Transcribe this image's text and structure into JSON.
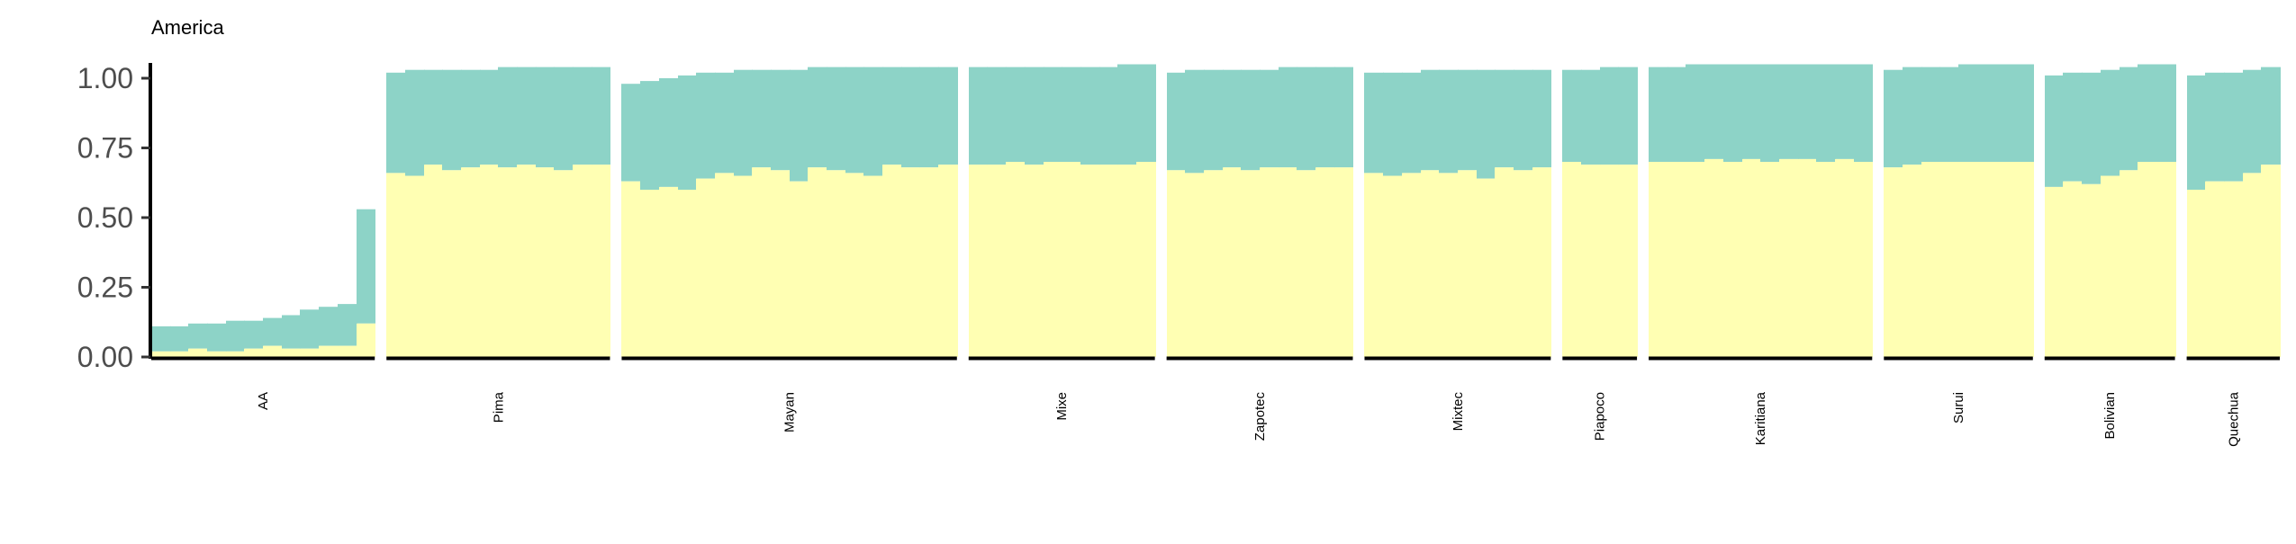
{
  "chart_data": {
    "type": "bar",
    "title": "America",
    "xlabel": "",
    "ylabel": "",
    "ylim": [
      0,
      1.05
    ],
    "yticks": [
      0.0,
      0.25,
      0.5,
      0.75,
      1.0
    ],
    "ytick_labels": [
      "0.00",
      "0.25",
      "0.50",
      "0.75",
      "1.00"
    ],
    "grid": false,
    "legend": "none",
    "colors": {
      "lower": "#ffffb3",
      "upper": "#8dd3c7"
    },
    "groups": [
      {
        "name": "AA",
        "lower": [
          0.02,
          0.02,
          0.03,
          0.02,
          0.02,
          0.03,
          0.04,
          0.03,
          0.03,
          0.04,
          0.04,
          0.12
        ],
        "total": [
          0.11,
          0.11,
          0.12,
          0.12,
          0.13,
          0.13,
          0.14,
          0.15,
          0.17,
          0.18,
          0.19,
          0.53
        ]
      },
      {
        "name": "Pima",
        "lower": [
          0.66,
          0.65,
          0.69,
          0.67,
          0.68,
          0.69,
          0.68,
          0.69,
          0.68,
          0.67,
          0.69,
          0.69
        ],
        "total": [
          1.02,
          1.03,
          1.03,
          1.03,
          1.03,
          1.03,
          1.04,
          1.04,
          1.04,
          1.04,
          1.04,
          1.04
        ]
      },
      {
        "name": "Mayan",
        "lower": [
          0.63,
          0.6,
          0.61,
          0.6,
          0.64,
          0.66,
          0.65,
          0.68,
          0.67,
          0.63,
          0.68,
          0.67,
          0.66,
          0.65,
          0.69,
          0.68,
          0.68,
          0.69
        ],
        "total": [
          0.98,
          0.99,
          1.0,
          1.01,
          1.02,
          1.02,
          1.03,
          1.03,
          1.03,
          1.03,
          1.04,
          1.04,
          1.04,
          1.04,
          1.04,
          1.04,
          1.04,
          1.04
        ]
      },
      {
        "name": "Mixe",
        "lower": [
          0.69,
          0.69,
          0.7,
          0.69,
          0.7,
          0.7,
          0.69,
          0.69,
          0.69,
          0.7
        ],
        "total": [
          1.04,
          1.04,
          1.04,
          1.04,
          1.04,
          1.04,
          1.04,
          1.04,
          1.05,
          1.05
        ]
      },
      {
        "name": "Zapotec",
        "lower": [
          0.67,
          0.66,
          0.67,
          0.68,
          0.67,
          0.68,
          0.68,
          0.67,
          0.68,
          0.68
        ],
        "total": [
          1.02,
          1.03,
          1.03,
          1.03,
          1.03,
          1.03,
          1.04,
          1.04,
          1.04,
          1.04
        ]
      },
      {
        "name": "Mixtec",
        "lower": [
          0.66,
          0.65,
          0.66,
          0.67,
          0.66,
          0.67,
          0.64,
          0.68,
          0.67,
          0.68
        ],
        "total": [
          1.02,
          1.02,
          1.02,
          1.03,
          1.03,
          1.03,
          1.03,
          1.03,
          1.03,
          1.03
        ]
      },
      {
        "name": "Piapoco",
        "lower": [
          0.7,
          0.69,
          0.69,
          0.69
        ],
        "total": [
          1.03,
          1.03,
          1.04,
          1.04
        ]
      },
      {
        "name": "Karitiana",
        "lower": [
          0.7,
          0.7,
          0.7,
          0.71,
          0.7,
          0.71,
          0.7,
          0.71,
          0.71,
          0.7,
          0.71,
          0.7
        ],
        "total": [
          1.04,
          1.04,
          1.05,
          1.05,
          1.05,
          1.05,
          1.05,
          1.05,
          1.05,
          1.05,
          1.05,
          1.05
        ]
      },
      {
        "name": "Surui",
        "lower": [
          0.68,
          0.69,
          0.7,
          0.7,
          0.7,
          0.7,
          0.7,
          0.7
        ],
        "total": [
          1.03,
          1.04,
          1.04,
          1.04,
          1.05,
          1.05,
          1.05,
          1.05
        ]
      },
      {
        "name": "Bolivian",
        "lower": [
          0.61,
          0.63,
          0.62,
          0.65,
          0.67,
          0.7,
          0.7
        ],
        "total": [
          1.01,
          1.02,
          1.02,
          1.03,
          1.04,
          1.05,
          1.05
        ]
      },
      {
        "name": "Quechua",
        "lower": [
          0.6,
          0.63,
          0.63,
          0.66,
          0.69
        ],
        "total": [
          1.01,
          1.02,
          1.02,
          1.03,
          1.04
        ]
      }
    ]
  }
}
